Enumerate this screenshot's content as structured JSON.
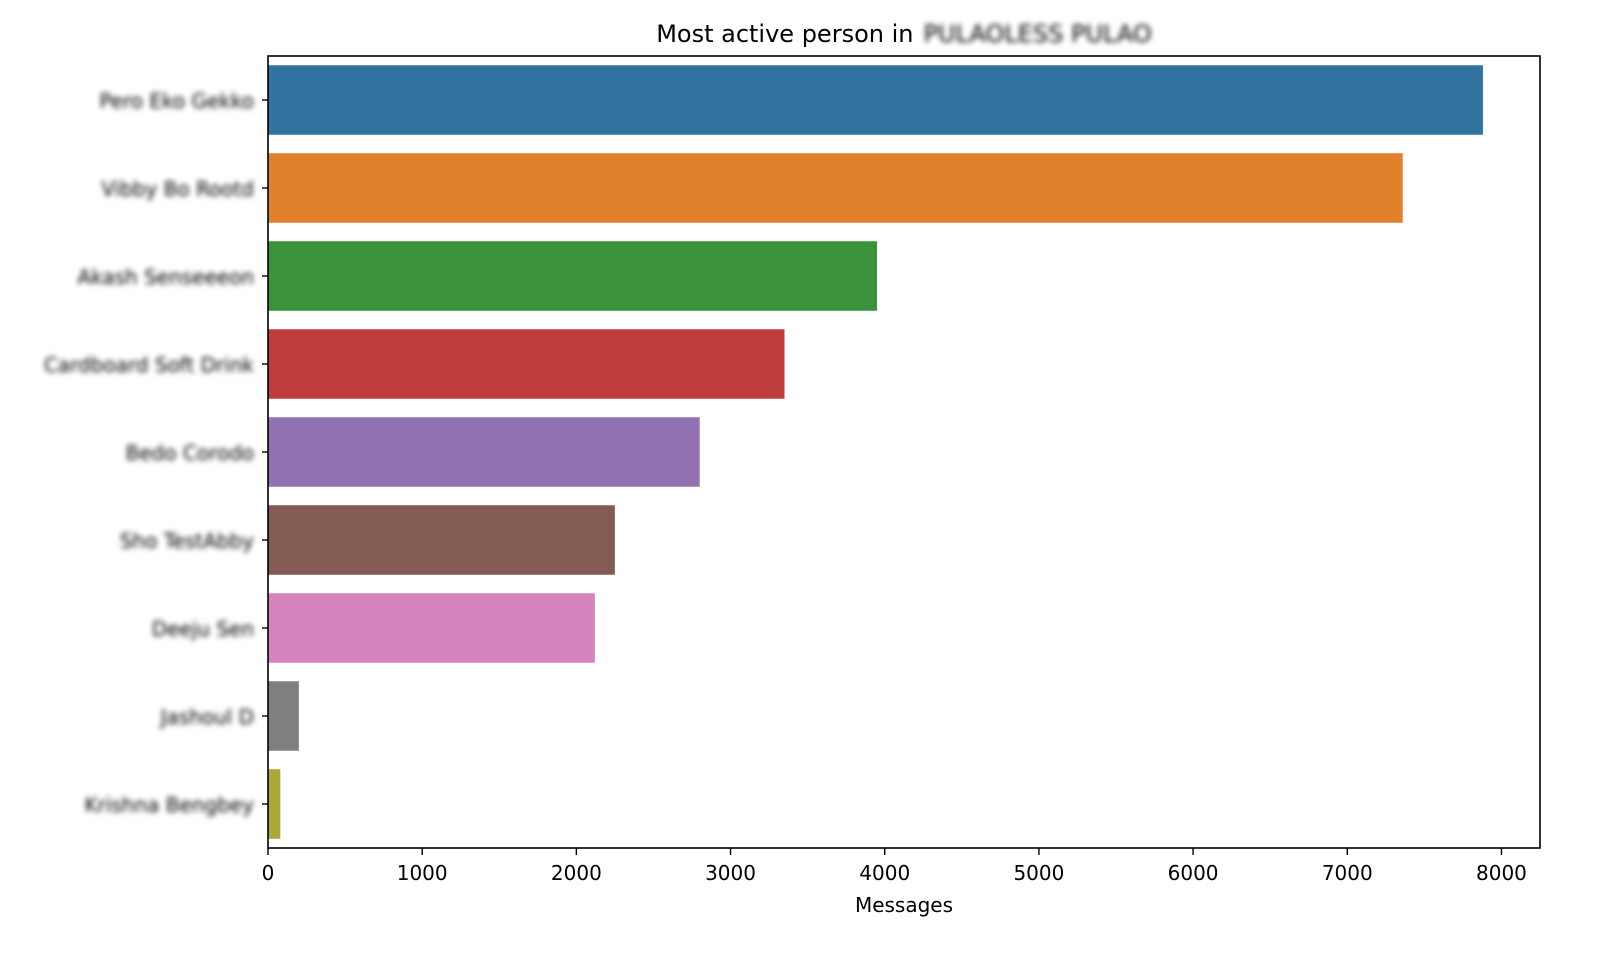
{
  "chart_data": {
    "type": "bar",
    "orientation": "horizontal",
    "title": "Most active person in",
    "title_redacted_text": "PULAOLESS PULAO",
    "xlabel": "Messages",
    "ylabel": "",
    "xlim": [
      0,
      8250
    ],
    "xticks": [
      0,
      1000,
      2000,
      3000,
      4000,
      5000,
      6000,
      7000,
      8000
    ],
    "grid": false,
    "legend": "none",
    "categories": [
      "Pero Eko Gekko",
      "Vibby Bo Rootd",
      "Akash Senseeeon",
      "Cardboard Soft Drink",
      "Bedo Corodo",
      "Sho TestAbby",
      "Deeju Sen",
      "Jashoul D",
      "Krishna Bengbey"
    ],
    "categories_redacted": true,
    "values": [
      7880,
      7360,
      3950,
      3350,
      2800,
      2250,
      2120,
      200,
      80
    ],
    "colors": [
      "#3274a1",
      "#e1812c",
      "#3a923a",
      "#c03d3e",
      "#9372b2",
      "#845b53",
      "#d684bd",
      "#7f7f7f",
      "#a9aa35"
    ]
  }
}
